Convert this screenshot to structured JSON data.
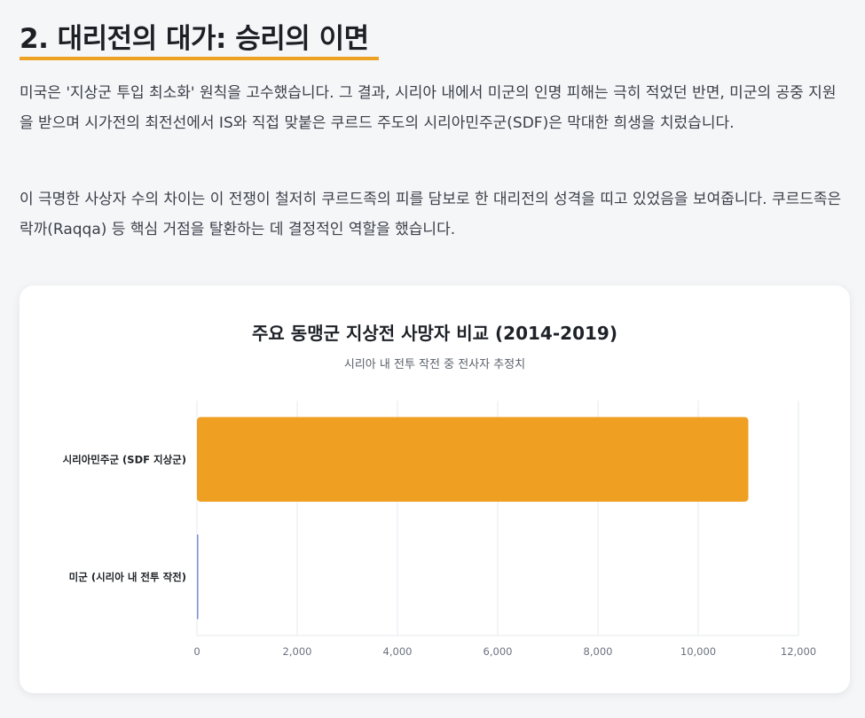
{
  "section": {
    "title": "2. 대리전의 대가: 승리의 이면",
    "paragraphs": [
      "미국은 '지상군 투입 최소화' 원칙을 고수했습니다. 그 결과, 시리아 내에서 미군의 인명 피해는 극히 적었던 반면, 미군의 공중 지원을 받으며 시가전의 최전선에서 IS와 직접 맞붙은 쿠르드 주도의 시리아민주군(SDF)은 막대한 희생을 치렀습니다.",
      "이 극명한 사상자 수의 차이는 이 전쟁이 철저히 쿠르드족의 피를 담보로 한 대리전의 성격을 띠고 있었음을 보여줍니다. 쿠르드족은 락까(Raqqa) 등 핵심 거점을 탈환하는 데 결정적인 역할을 했습니다."
    ]
  },
  "colors": {
    "accent": "#eda224",
    "bar_sdf": "#ef9f22",
    "bar_us": "#7b8fd6",
    "grid": "#e6e8ec"
  },
  "chart_data": {
    "type": "bar",
    "orientation": "horizontal",
    "title": "주요 동맹군 지상전 사망자 비교 (2014-2019)",
    "subtitle": "시리아 내 전투 작전 중 전사자 추정치",
    "categories": [
      "시리아민주군 (SDF 지상군)",
      "미군 (시리아 내 전투 작전)"
    ],
    "values": [
      11000,
      8
    ],
    "xlim": [
      0,
      12000
    ],
    "xticks": [
      0,
      2000,
      4000,
      6000,
      8000,
      10000,
      12000
    ],
    "xtick_labels": [
      "0",
      "2,000",
      "4,000",
      "6,000",
      "8,000",
      "10,000",
      "12,000"
    ],
    "grid": true,
    "legend": "none"
  }
}
